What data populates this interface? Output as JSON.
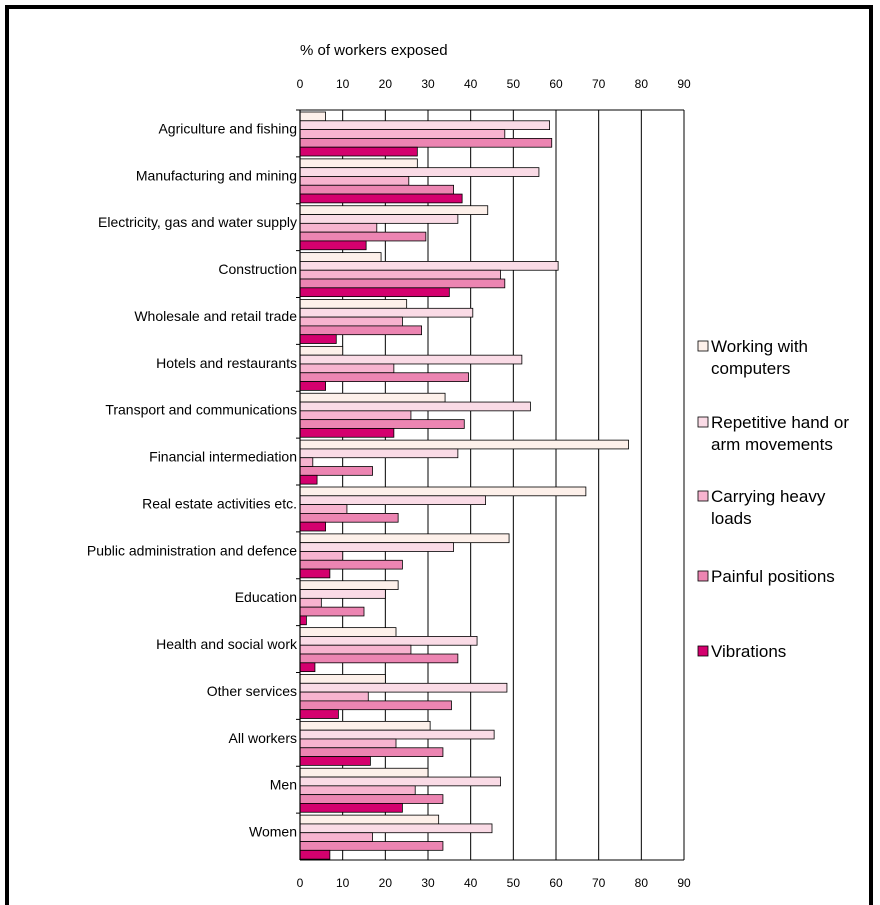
{
  "chart_data": {
    "type": "bar",
    "orientation": "horizontal",
    "title": "% of workers exposed",
    "xlabel": "",
    "ylabel": "",
    "xlim": [
      0,
      90
    ],
    "ticks": [
      0,
      10,
      20,
      30,
      40,
      50,
      60,
      70,
      80,
      90
    ],
    "grid": true,
    "legend_position": "right",
    "categories": [
      "Agriculture and fishing",
      "Manufacturing and mining",
      "Electricity, gas and water supply",
      "Construction",
      "Wholesale and retail trade",
      "Hotels and restaurants",
      "Transport and communications",
      "Financial intermediation",
      "Real estate activities etc.",
      "Public administration and defence",
      "Education",
      "Health and social work",
      "Other services",
      "All workers",
      "Men",
      "Women"
    ],
    "series": [
      {
        "name": "Working with computers",
        "color": "#fdf0ea",
        "legend": [
          "Working with",
          "computers"
        ],
        "values": [
          6,
          27.5,
          44,
          19,
          25,
          10,
          34,
          77,
          67,
          49,
          23,
          22.5,
          20,
          30.5,
          30,
          32.5
        ]
      },
      {
        "name": "Repetitive hand or arm movements",
        "color": "#fadbe6",
        "legend": [
          "Repetitive hand or",
          "arm movements"
        ],
        "values": [
          58.5,
          56,
          37,
          60.5,
          40.5,
          52,
          54,
          37,
          43.5,
          36,
          20,
          41.5,
          48.5,
          45.5,
          47,
          45
        ]
      },
      {
        "name": "Carrying heavy loads",
        "color": "#f7b3cf",
        "legend": [
          "Carrying heavy",
          "loads"
        ],
        "values": [
          48,
          25.5,
          18,
          47,
          24,
          22,
          26,
          3,
          11,
          10,
          5,
          26,
          16,
          22.5,
          27,
          17
        ]
      },
      {
        "name": "Painful positions",
        "color": "#ec85b2",
        "legend": [
          "Painful positions"
        ],
        "values": [
          59,
          36,
          29.5,
          48,
          28.5,
          39.5,
          38.5,
          17,
          23,
          24,
          15,
          37,
          35.5,
          33.5,
          33.5,
          33.5
        ]
      },
      {
        "name": "Vibrations",
        "color": "#d4006e",
        "legend": [
          "Vibrations"
        ],
        "values": [
          27.5,
          38,
          15.5,
          35,
          8.5,
          6,
          22,
          4,
          6,
          7,
          1.5,
          3.5,
          9,
          16.5,
          24,
          7
        ]
      }
    ]
  }
}
